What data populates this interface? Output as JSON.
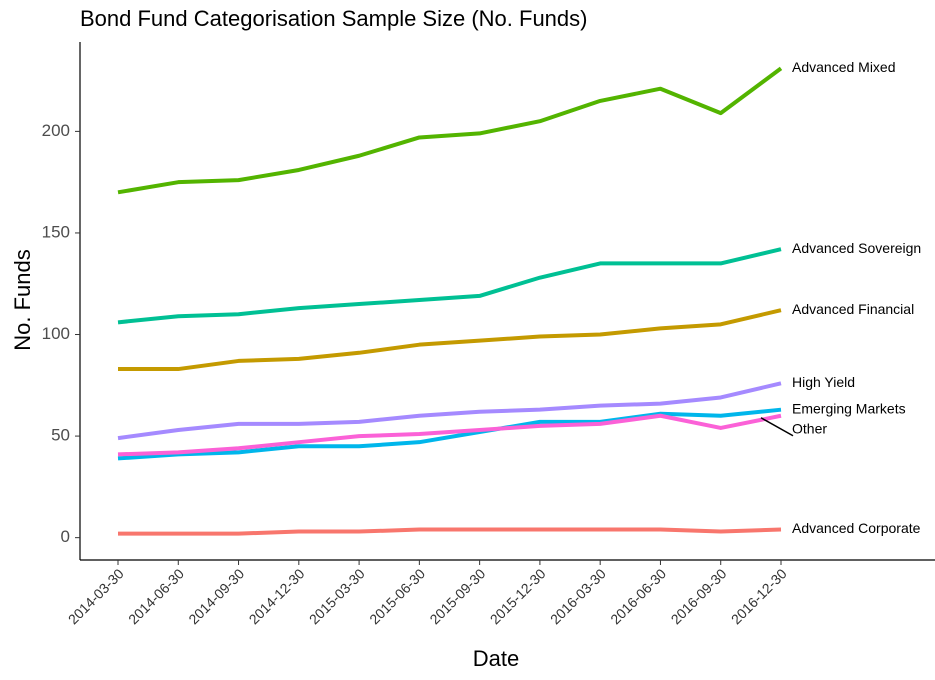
{
  "chart_data": {
    "type": "line",
    "title": "Bond Fund Categorisation Sample Size (No. Funds)",
    "x_label": "Date",
    "y_label": "No. Funds",
    "categories": [
      "2014-03-30",
      "2014-06-30",
      "2014-09-30",
      "2014-12-30",
      "2015-03-30",
      "2015-06-30",
      "2015-09-30",
      "2015-12-30",
      "2016-03-30",
      "2016-06-30",
      "2016-09-30",
      "2016-12-30"
    ],
    "series": [
      {
        "name": "Advanced Mixed",
        "color": "#53B400",
        "values": [
          170,
          175,
          176,
          181,
          188,
          197,
          199,
          205,
          215,
          221,
          209,
          231
        ]
      },
      {
        "name": "Advanced Sovereign",
        "color": "#00C094",
        "values": [
          106,
          109,
          110,
          113,
          115,
          117,
          119,
          128,
          135,
          135,
          135,
          142
        ]
      },
      {
        "name": "Advanced Financial",
        "color": "#C49A00",
        "values": [
          83,
          83,
          87,
          88,
          91,
          95,
          97,
          99,
          100,
          103,
          105,
          112
        ]
      },
      {
        "name": "High Yield",
        "color": "#A58AFF",
        "values": [
          49,
          53,
          56,
          56,
          57,
          60,
          62,
          63,
          65,
          66,
          69,
          76
        ]
      },
      {
        "name": "Emerging Markets",
        "color": "#00B6EB",
        "values": [
          39,
          41,
          42,
          45,
          45,
          47,
          52,
          57,
          57,
          61,
          60,
          63
        ]
      },
      {
        "name": "Other",
        "color": "#FB61D7",
        "values": [
          41,
          42,
          44,
          47,
          50,
          51,
          53,
          55,
          56,
          60,
          54,
          60
        ]
      },
      {
        "name": "Advanced Corporate",
        "color": "#F8766D",
        "values": [
          2,
          2,
          2,
          3,
          3,
          4,
          4,
          4,
          4,
          4,
          3,
          4
        ]
      }
    ],
    "ylim": [
      -11,
      244
    ],
    "yticks": [
      0,
      50,
      100,
      150,
      200
    ],
    "grid": false
  }
}
